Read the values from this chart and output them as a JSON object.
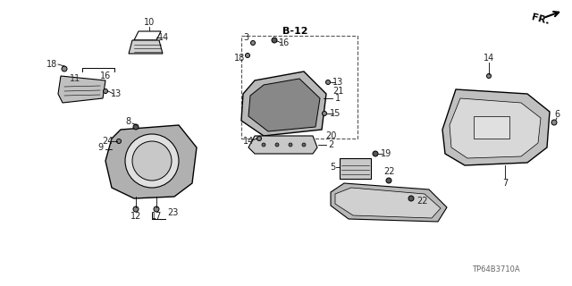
{
  "title": "",
  "background_color": "#ffffff",
  "fig_width": 6.4,
  "fig_height": 3.2,
  "watermark": "TP64B3710A",
  "direction_label": "FR.",
  "b12_label": "B-12",
  "part_numbers": [
    1,
    2,
    3,
    4,
    5,
    6,
    7,
    8,
    9,
    10,
    11,
    12,
    13,
    14,
    15,
    16,
    17,
    18,
    19,
    20,
    21,
    22,
    23,
    24
  ],
  "label_color": "#333333",
  "line_color": "#000000",
  "part_outline_color": "#000000",
  "dashed_box_color": "#555555"
}
